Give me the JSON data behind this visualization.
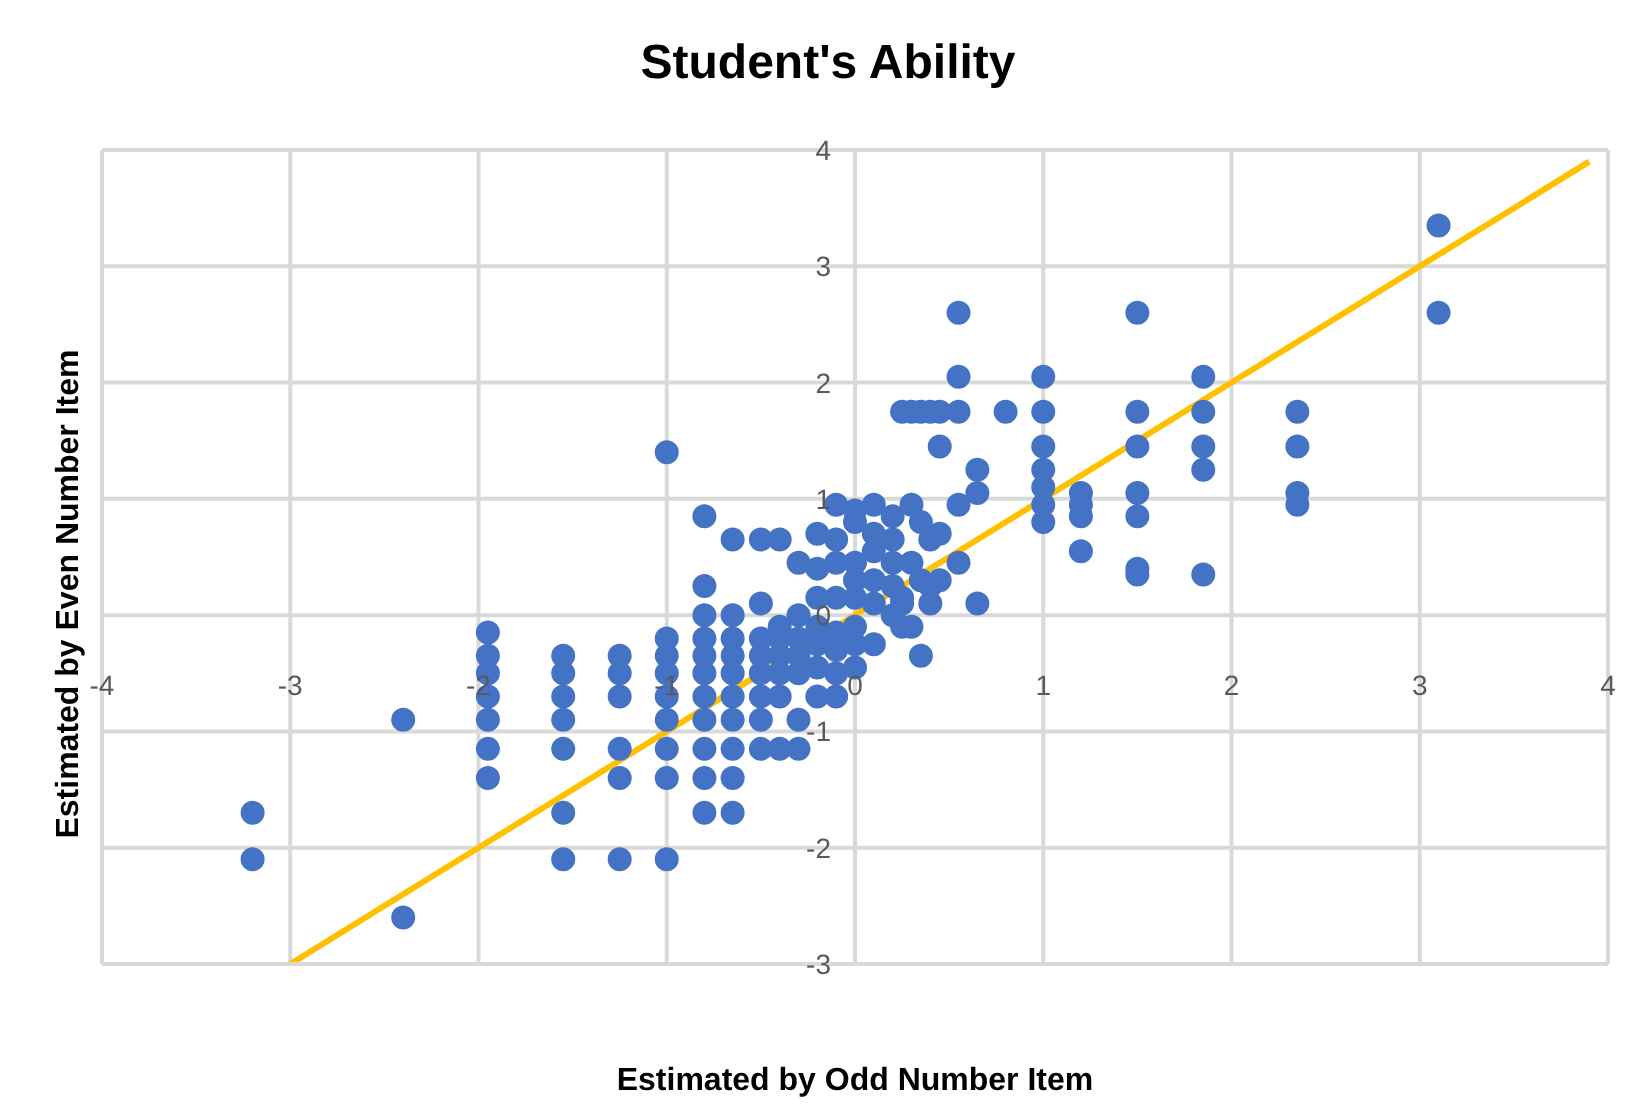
{
  "chart_data": {
    "type": "scatter",
    "title": "Student's Ability",
    "xlabel": "Estimated by Odd Number Item",
    "ylabel": "Estimated by Even Number Item",
    "xlim": [
      -4,
      4
    ],
    "xticks": [
      -4,
      -3,
      -2,
      -1,
      0,
      1,
      2,
      3,
      4
    ],
    "ylim": [
      -3,
      4
    ],
    "yticks": [
      -3,
      -2,
      -1,
      0,
      1,
      2,
      3,
      4
    ],
    "grid": true,
    "series": [
      {
        "type": "scatter",
        "marker": "circle",
        "color": "#4472c4",
        "x": [
          -3.2,
          -3.2,
          -2.4,
          -2.4,
          -1.95,
          -1.95,
          -1.95,
          -1.95,
          -1.95,
          -1.95,
          -1.95,
          -1.55,
          -1.55,
          -1.55,
          -1.55,
          -1.55,
          -1.55,
          -1.55,
          -1.25,
          -1.25,
          -1.25,
          -1.25,
          -1.25,
          -1.25,
          -1.0,
          -1.0,
          -1.0,
          -1.0,
          -1.0,
          -1.0,
          -1.0,
          -1.0,
          -1.0,
          -0.8,
          -0.8,
          -0.8,
          -0.8,
          -0.8,
          -0.8,
          -0.8,
          -0.8,
          -0.8,
          -0.8,
          -0.8,
          -0.65,
          -0.65,
          -0.65,
          -0.65,
          -0.65,
          -0.65,
          -0.65,
          -0.65,
          -0.65,
          -0.65,
          -0.5,
          -0.5,
          -0.5,
          -0.5,
          -0.5,
          -0.5,
          -0.5,
          -0.5,
          -0.4,
          -0.4,
          -0.4,
          -0.4,
          -0.4,
          -0.4,
          -0.4,
          -0.3,
          -0.3,
          -0.3,
          -0.3,
          -0.3,
          -0.3,
          -0.3,
          -0.2,
          -0.2,
          -0.2,
          -0.2,
          -0.2,
          -0.2,
          -0.2,
          -0.1,
          -0.1,
          -0.1,
          -0.1,
          -0.1,
          -0.1,
          -0.1,
          -0.1,
          0,
          0,
          0,
          0,
          0,
          0,
          0,
          0,
          0.1,
          0.1,
          0.1,
          0.1,
          0.1,
          0.1,
          0.2,
          0.2,
          0.2,
          0.2,
          0.2,
          0.25,
          0.25,
          0.25,
          0.25,
          0.3,
          0.3,
          0.3,
          0.3,
          0.35,
          0.35,
          0.35,
          0.35,
          0.4,
          0.4,
          0.4,
          0.4,
          0.45,
          0.45,
          0.45,
          0.45,
          0.55,
          0.55,
          0.55,
          0.55,
          0.55,
          0.65,
          0.65,
          0.65,
          0.8,
          1.0,
          1.0,
          1.0,
          1.0,
          1.0,
          1.0,
          1.0,
          1.2,
          1.2,
          1.2,
          1.2,
          1.5,
          1.5,
          1.5,
          1.5,
          1.5,
          1.5,
          1.5,
          1.85,
          1.85,
          1.85,
          1.85,
          1.85,
          2.35,
          2.35,
          2.35,
          2.35,
          3.1,
          3.1
        ],
        "values": [
          -1.7,
          -2.1,
          -0.9,
          -2.6,
          -0.15,
          -0.35,
          -0.5,
          -0.7,
          -0.9,
          -1.15,
          -1.4,
          -0.35,
          -0.5,
          -0.7,
          -0.9,
          -1.15,
          -1.7,
          -2.1,
          -0.35,
          -0.5,
          -0.7,
          -1.15,
          -1.4,
          -2.1,
          1.4,
          -0.2,
          -0.35,
          -0.5,
          -0.7,
          -0.9,
          -1.15,
          -1.4,
          -2.1,
          0.85,
          0.25,
          0,
          -0.2,
          -0.35,
          -0.5,
          -0.7,
          -0.9,
          -1.15,
          -1.4,
          -1.7,
          0.65,
          0,
          -0.2,
          -0.35,
          -0.5,
          -0.7,
          -0.9,
          -1.15,
          -1.4,
          -1.7,
          0.65,
          0.1,
          -0.2,
          -0.35,
          -0.5,
          -0.7,
          -0.9,
          -1.15,
          0.65,
          -0.1,
          -0.2,
          -0.35,
          -0.5,
          -0.7,
          -1.15,
          0.45,
          0,
          -0.2,
          -0.35,
          -0.5,
          -0.9,
          -1.15,
          0.7,
          0.4,
          0.15,
          -0.1,
          -0.25,
          -0.45,
          -0.7,
          0.95,
          0.65,
          0.45,
          0.15,
          -0.15,
          -0.3,
          -0.5,
          -0.7,
          0.9,
          0.8,
          0.45,
          0.3,
          0.15,
          -0.1,
          -0.25,
          -0.45,
          0.95,
          0.7,
          0.55,
          0.3,
          0.1,
          -0.25,
          0.85,
          0.65,
          0.45,
          0.25,
          0,
          1.75,
          0.15,
          0.1,
          -0.1,
          1.75,
          0.95,
          0.45,
          -0.1,
          1.75,
          0.8,
          0.3,
          -0.35,
          1.75,
          0.65,
          0.25,
          0.1,
          1.75,
          1.45,
          0.7,
          0.3,
          2.6,
          2.05,
          1.75,
          0.95,
          0.45,
          1.25,
          1.05,
          0.1,
          1.75,
          2.05,
          1.75,
          1.45,
          1.25,
          1.1,
          0.95,
          0.8,
          1.05,
          0.95,
          0.85,
          0.55,
          2.6,
          1.75,
          1.45,
          1.05,
          0.85,
          0.4,
          0.35,
          2.05,
          1.75,
          1.45,
          1.25,
          0.35,
          1.75,
          1.45,
          1.05,
          0.95,
          3.35,
          2.6
        ]
      },
      {
        "type": "line",
        "marker": "none",
        "color": "#ffc000",
        "x": [
          -3,
          3.9
        ],
        "values": [
          -3,
          3.9
        ]
      }
    ]
  }
}
